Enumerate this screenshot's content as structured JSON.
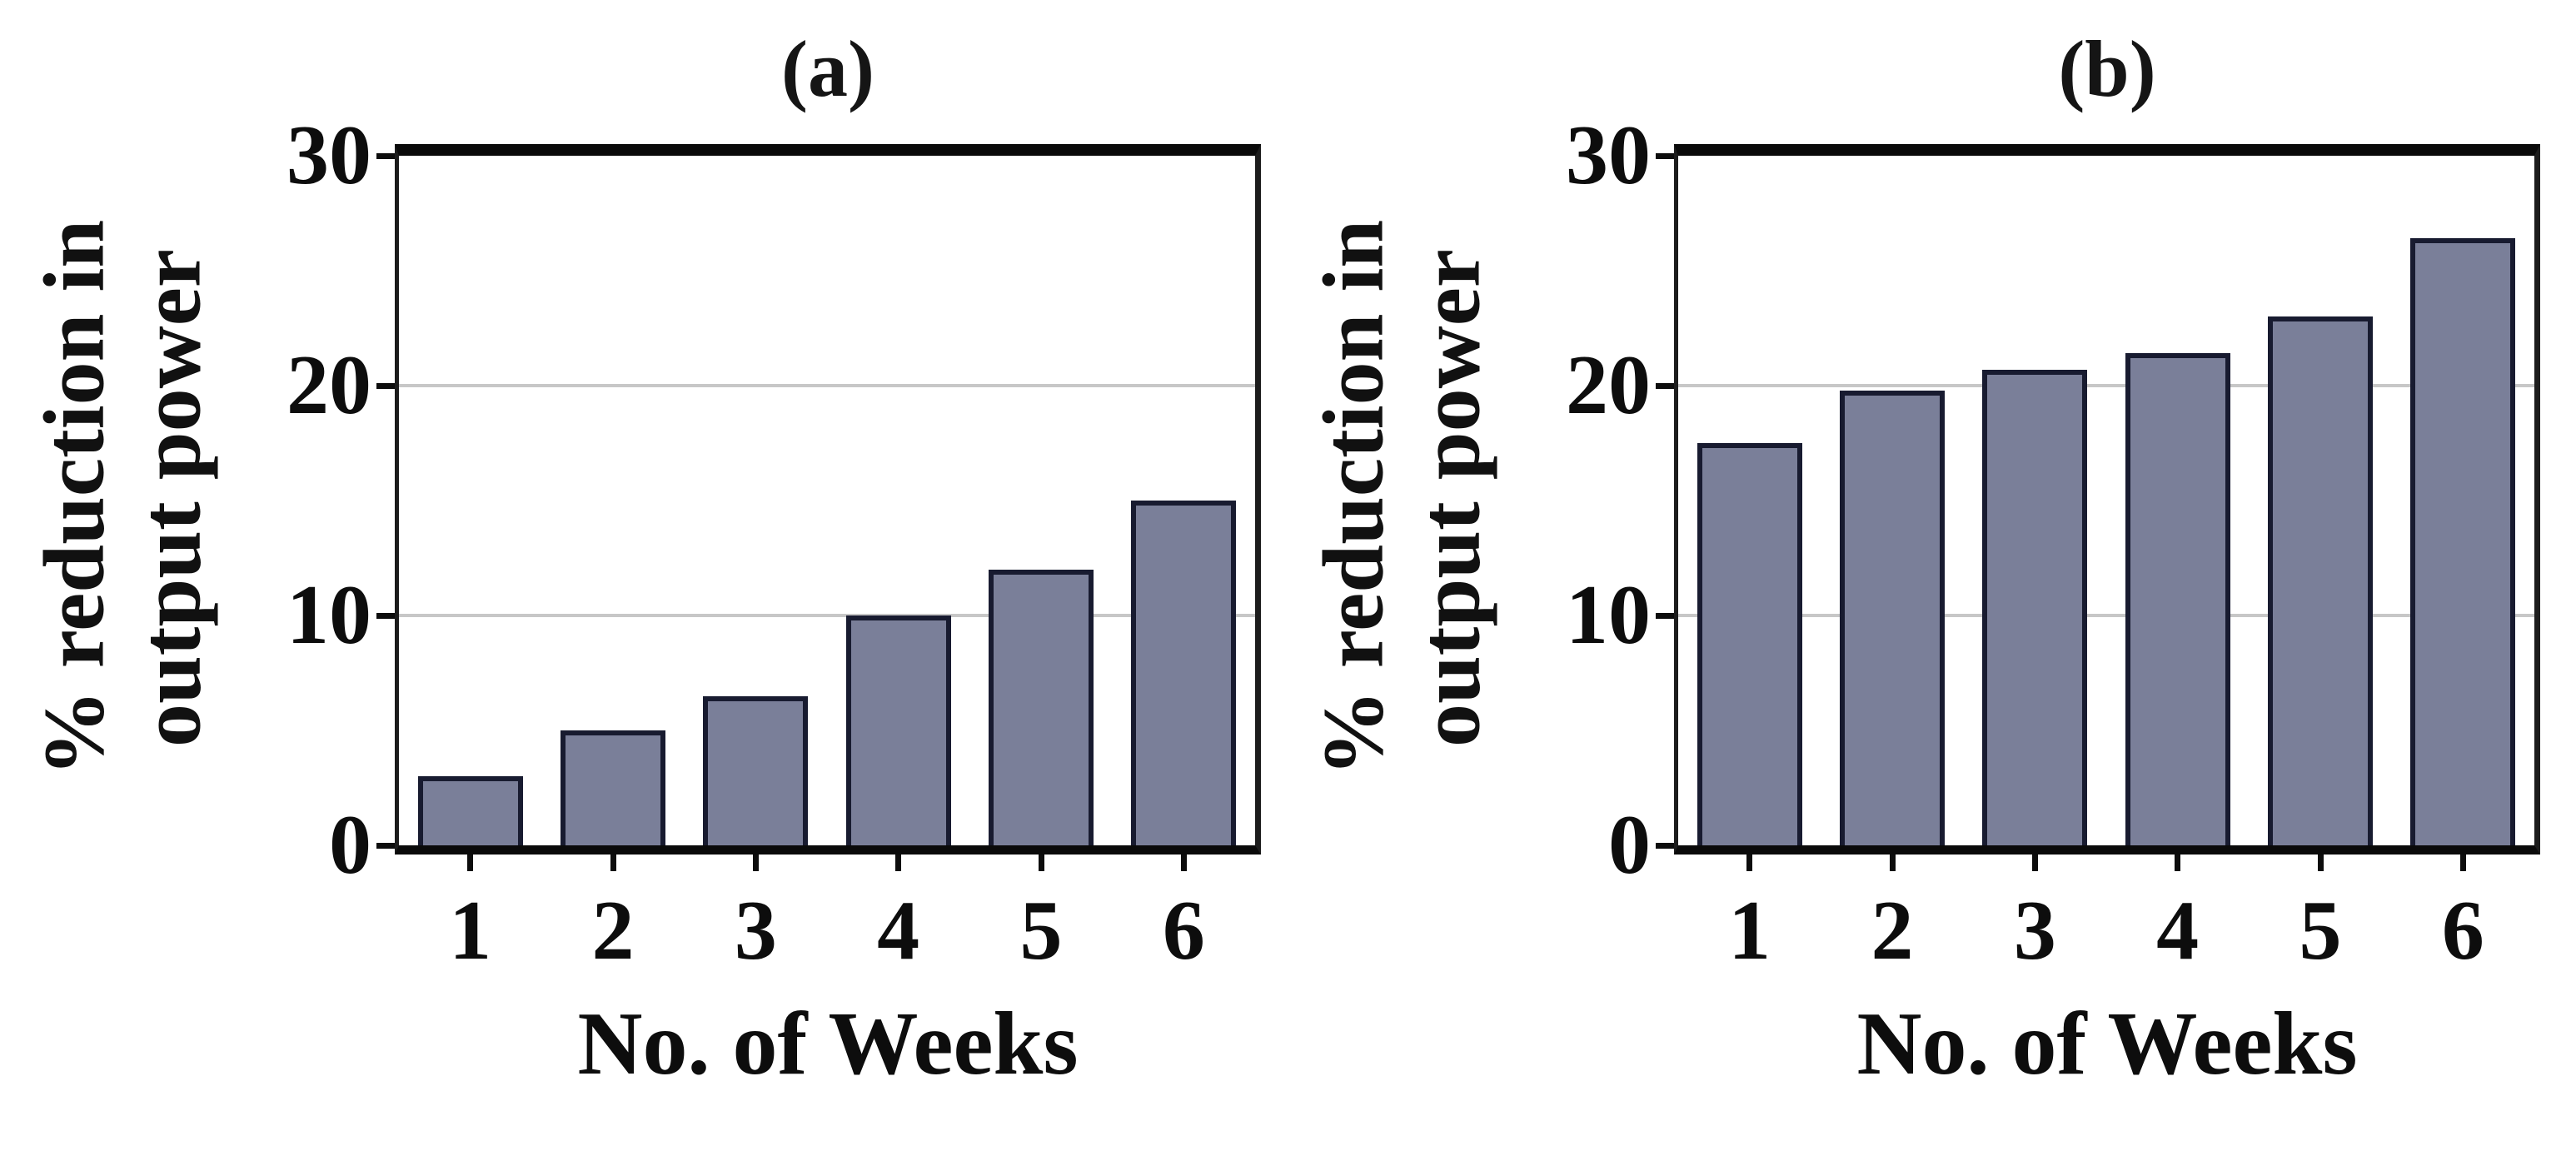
{
  "figure": {
    "background": "#ffffff",
    "bar_fill": "#7a7f99",
    "bar_edge": "#181b30",
    "gridline_color": "#c7c7c7",
    "axis_color": "#0a0a0a",
    "text_color": "#0d0d0d"
  },
  "chart_data": [
    {
      "type": "bar",
      "title": "(a)",
      "categories": [
        "1",
        "2",
        "3",
        "4",
        "5",
        "6"
      ],
      "values": [
        3,
        5,
        6.5,
        10,
        12,
        15
      ],
      "xlabel": "No. of Weeks",
      "ylabel_line1": "% reduction in",
      "ylabel_line2": "output power",
      "ylim": [
        0,
        30
      ],
      "yticks": [
        30,
        20,
        10,
        0
      ],
      "gridlines": [
        20,
        10
      ],
      "grid": "horizontal-only",
      "legend": "none"
    },
    {
      "type": "bar",
      "title": "(b)",
      "categories": [
        "1",
        "2",
        "3",
        "4",
        "5",
        "6"
      ],
      "values": [
        17.5,
        19.8,
        20.7,
        21.4,
        23,
        26.4
      ],
      "xlabel": "No. of Weeks",
      "ylabel_line1": "% reduction in",
      "ylabel_line2": "output power",
      "ylim": [
        0,
        30
      ],
      "yticks": [
        30,
        20,
        10,
        0
      ],
      "gridlines": [
        20,
        10
      ],
      "grid": "horizontal-only",
      "legend": "none"
    }
  ]
}
